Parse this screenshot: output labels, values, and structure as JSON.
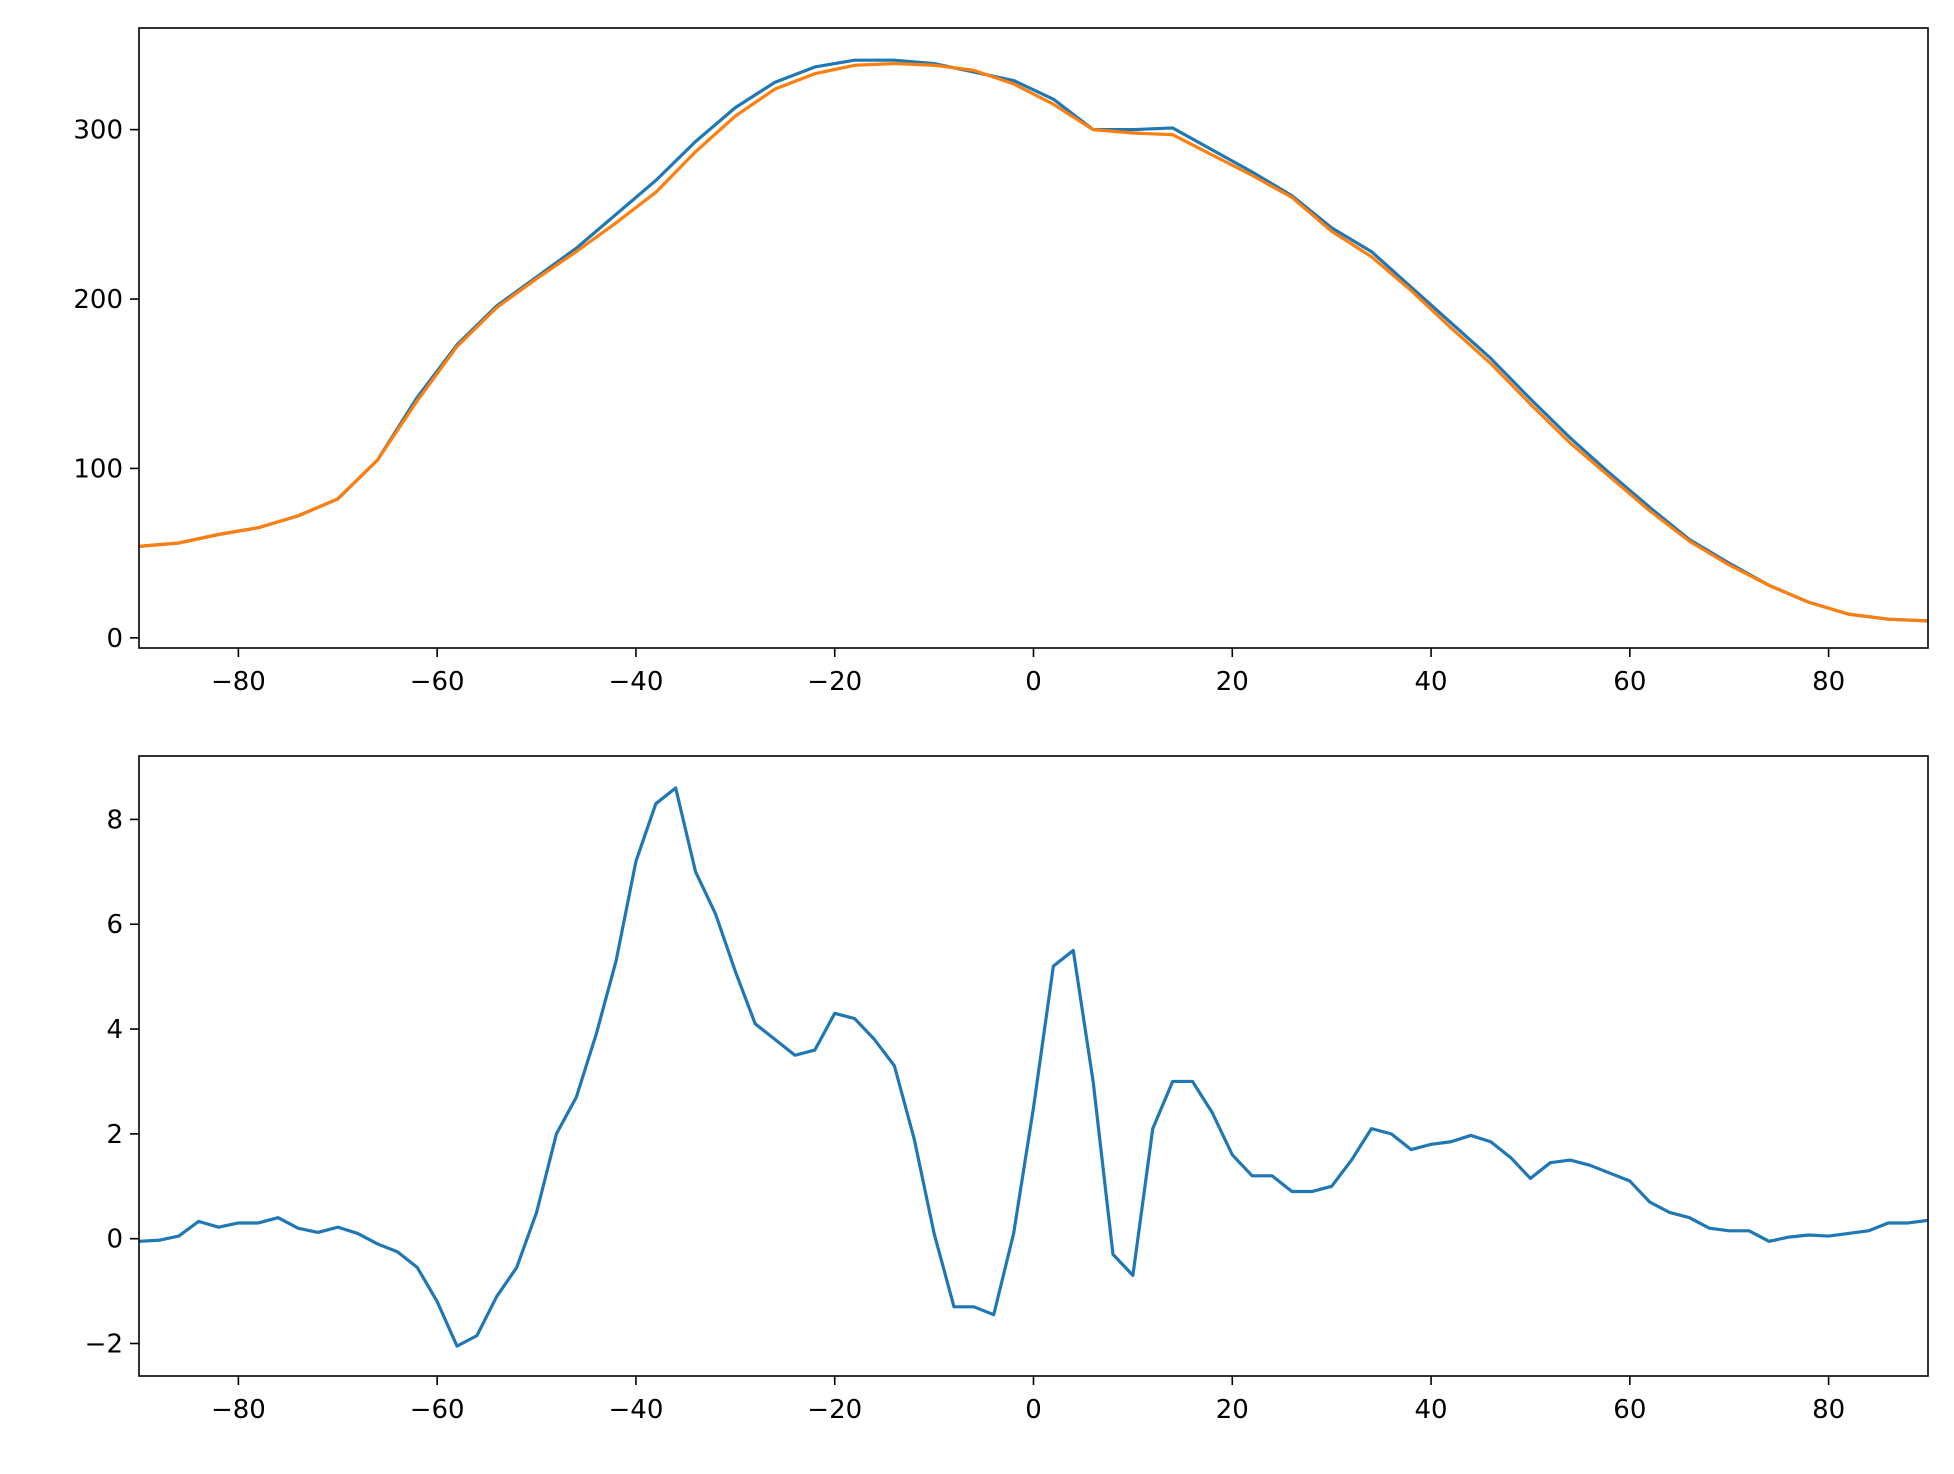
{
  "chart_data": [
    {
      "type": "line",
      "x": [
        -90,
        -86,
        -82,
        -78,
        -74,
        -70,
        -66,
        -62,
        -58,
        -54,
        -50,
        -46,
        -42,
        -38,
        -34,
        -30,
        -26,
        -22,
        -18,
        -14,
        -10,
        -6,
        -2,
        2,
        6,
        10,
        14,
        18,
        22,
        26,
        30,
        34,
        38,
        42,
        46,
        50,
        54,
        58,
        62,
        66,
        70,
        74,
        78,
        82,
        86,
        90
      ],
      "series": [
        {
          "color": "#1f77b4",
          "values": [
            54,
            56,
            61,
            65,
            72,
            82,
            105,
            142,
            173,
            196,
            213,
            230,
            250,
            270,
            293,
            313,
            328,
            337,
            341,
            341,
            339,
            334,
            329,
            318,
            300,
            300,
            301,
            288,
            275,
            261,
            242,
            228,
            207,
            186,
            165,
            141,
            118,
            97,
            77,
            58,
            44,
            31,
            21,
            14,
            11,
            10
          ]
        },
        {
          "color": "#ff7f0e",
          "values": [
            54,
            56,
            61,
            65,
            72,
            82,
            105,
            140,
            172,
            195,
            212,
            228,
            245,
            263,
            287,
            308,
            324,
            333,
            338,
            339,
            338,
            335,
            327,
            315,
            300,
            298,
            297,
            285,
            273,
            260,
            240,
            225,
            205,
            183,
            162,
            138,
            115,
            95,
            75,
            57,
            43,
            31,
            21,
            14,
            11,
            10
          ]
        }
      ],
      "xlim": [
        -90,
        90
      ],
      "ylim": [
        -6,
        360
      ],
      "xticks": [
        {
          "value": -80,
          "label": "−80"
        },
        {
          "value": -60,
          "label": "−60"
        },
        {
          "value": -40,
          "label": "−40"
        },
        {
          "value": -20,
          "label": "−20"
        },
        0,
        20,
        40,
        60,
        80
      ],
      "yticks": [
        0,
        100,
        200,
        300
      ]
    },
    {
      "type": "line",
      "x": [
        -90,
        -88,
        -86,
        -84,
        -82,
        -80,
        -78,
        -76,
        -74,
        -72,
        -70,
        -68,
        -66,
        -64,
        -62,
        -60,
        -58,
        -56,
        -54,
        -52,
        -50,
        -48,
        -46,
        -44,
        -42,
        -40,
        -38,
        -36,
        -34,
        -32,
        -30,
        -28,
        -26,
        -24,
        -22,
        -20,
        -18,
        -16,
        -14,
        -12,
        -10,
        -8,
        -6,
        -4,
        -2,
        0,
        2,
        4,
        6,
        8,
        10,
        12,
        14,
        16,
        18,
        20,
        22,
        24,
        26,
        28,
        30,
        32,
        34,
        36,
        38,
        40,
        42,
        44,
        46,
        48,
        50,
        52,
        54,
        56,
        58,
        60,
        62,
        64,
        66,
        68,
        70,
        72,
        74,
        76,
        78,
        80,
        82,
        84,
        86,
        88,
        90
      ],
      "series": [
        {
          "color": "#1f77b4",
          "values": [
            -0.05,
            -0.03,
            0.05,
            0.33,
            0.22,
            0.3,
            0.3,
            0.4,
            0.2,
            0.12,
            0.22,
            0.1,
            -0.1,
            -0.25,
            -0.55,
            -1.2,
            -2.05,
            -1.85,
            -1.1,
            -0.55,
            0.5,
            2.0,
            2.7,
            3.9,
            5.3,
            7.2,
            8.3,
            8.6,
            7.0,
            6.2,
            5.1,
            4.1,
            3.8,
            3.5,
            3.6,
            4.3,
            4.2,
            3.8,
            3.3,
            1.9,
            0.1,
            -1.3,
            -1.3,
            -1.45,
            0.1,
            2.5,
            5.2,
            5.5,
            3.0,
            -0.3,
            -0.7,
            2.1,
            3.0,
            3.0,
            2.4,
            1.6,
            1.2,
            1.2,
            0.9,
            0.9,
            1.0,
            1.5,
            2.1,
            2.0,
            1.7,
            1.8,
            1.85,
            1.97,
            1.85,
            1.55,
            1.15,
            1.45,
            1.5,
            1.4,
            1.25,
            1.1,
            0.7,
            0.5,
            0.4,
            0.2,
            0.15,
            0.15,
            -0.05,
            0.03,
            0.07,
            0.05,
            0.1,
            0.15,
            0.3,
            0.3,
            0.35
          ]
        }
      ],
      "xlim": [
        -90,
        90
      ],
      "ylim": [
        -2.62,
        9.21
      ],
      "xticks": [
        {
          "value": -80,
          "label": "−80"
        },
        {
          "value": -60,
          "label": "−60"
        },
        {
          "value": -40,
          "label": "−40"
        },
        {
          "value": -20,
          "label": "−20"
        },
        0,
        20,
        40,
        60,
        80
      ],
      "yticks": [
        {
          "value": -2,
          "label": "−2"
        },
        0,
        2,
        4,
        6,
        8
      ]
    }
  ]
}
